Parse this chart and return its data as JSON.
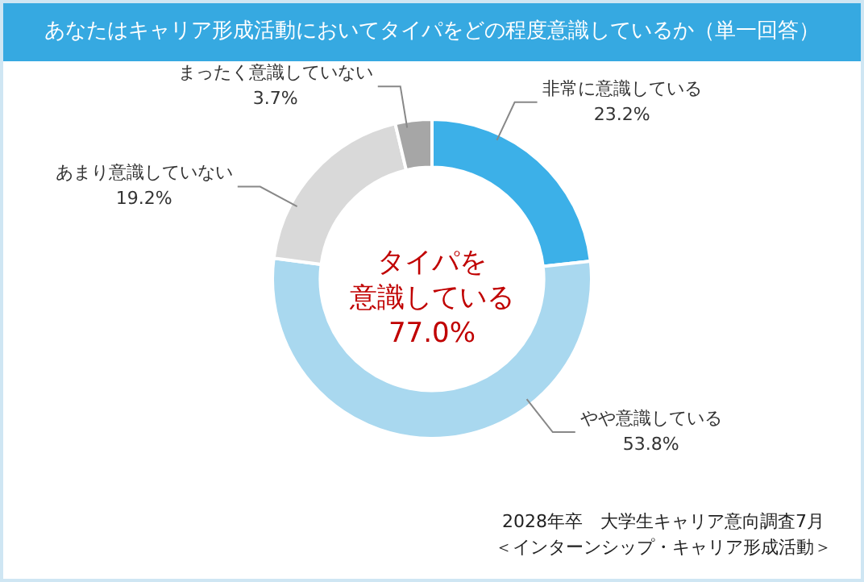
{
  "chart_data": {
    "type": "donut",
    "title": "あなたはキャリア形成活動においてタイパをどの程度意識しているか（単一回答）",
    "categories": [
      "非常に意識している",
      "やや意識している",
      "あまり意識していない",
      "まったく意識していない"
    ],
    "values": [
      23.2,
      53.8,
      19.2,
      3.7
    ],
    "colors": [
      "#3cb0e8",
      "#a9d8ef",
      "#d9d9d9",
      "#a6a6a6"
    ],
    "value_labels": [
      "23.2%",
      "53.8%",
      "19.2%",
      "3.7%"
    ],
    "legend": false,
    "annotations": [
      "タイパを",
      "意識している",
      "77.0%",
      "2028年卒　大学生キャリア意向調査7月",
      "＜インターンシップ・キャリア形成活動＞"
    ]
  }
}
